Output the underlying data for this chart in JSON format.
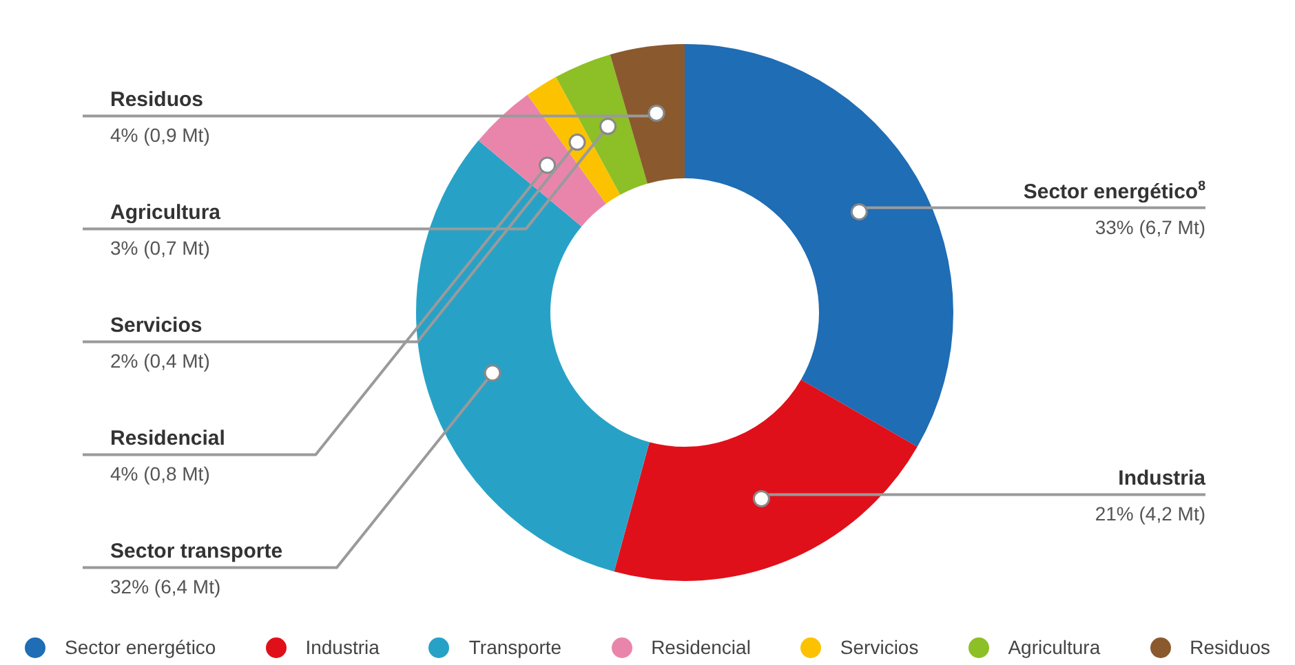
{
  "chart_data": {
    "type": "donut",
    "categories": [
      "Sector energético",
      "Industria",
      "Transporte",
      "Residencial",
      "Servicios",
      "Agricultura",
      "Residuos"
    ],
    "values": [
      6.7,
      4.2,
      6.4,
      0.8,
      0.4,
      0.7,
      0.9
    ],
    "colors": [
      "#1f6db4",
      "#e0101a",
      "#27a2c6",
      "#e985ab",
      "#fcc200",
      "#8dbf26",
      "#8a5a2e"
    ],
    "value_labels": [
      "33% (6,7 Mt)",
      "21% (4,2 Mt)",
      "32% (6,4 Mt)",
      "4% (0,8 Mt)",
      "2% (0,4 Mt)",
      "3% (0,7 Mt)",
      "4% (0,9 Mt)"
    ],
    "annotations": [
      "Sector energético$^{8}$",
      "Industria",
      "Sector transporte",
      "Residencial",
      "Servicios",
      "Agricultura",
      "Residuos"
    ],
    "legend": "bottom"
  }
}
